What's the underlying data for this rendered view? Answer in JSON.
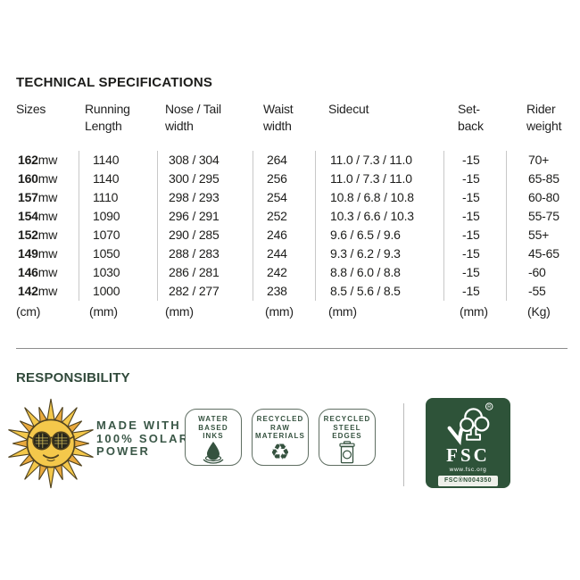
{
  "title": "TECHNICAL SPECIFICATIONS",
  "table": {
    "headers": [
      [
        "Sizes"
      ],
      [
        "Running",
        "Length"
      ],
      [
        "Nose / Tail",
        "width"
      ],
      [
        "Waist",
        "width"
      ],
      [
        "Sidecut"
      ],
      [
        "Set-",
        "back"
      ],
      [
        "Rider",
        "weight"
      ]
    ],
    "rows": [
      {
        "size": "162",
        "size_suffix": "mw",
        "running": "1140",
        "nose_tail": "308 / 304",
        "waist": "264",
        "sidecut": "11.0 / 7.3 / 11.0",
        "setback": "-15",
        "rider": "70+"
      },
      {
        "size": "160",
        "size_suffix": "mw",
        "running": "1140",
        "nose_tail": "300 / 295",
        "waist": "256",
        "sidecut": "11.0 / 7.3 / 11.0",
        "setback": "-15",
        "rider": "65-85"
      },
      {
        "size": "157",
        "size_suffix": "mw",
        "running": "1110",
        "nose_tail": "298 / 293",
        "waist": "254",
        "sidecut": "10.8 / 6.8 / 10.8",
        "setback": "-15",
        "rider": "60-80"
      },
      {
        "size": "154",
        "size_suffix": "mw",
        "running": "1090",
        "nose_tail": "296 / 291",
        "waist": "252",
        "sidecut": "10.3 / 6.6 / 10.3",
        "setback": "-15",
        "rider": "55-75"
      },
      {
        "size": "152",
        "size_suffix": "mw",
        "running": "1070",
        "nose_tail": "290 / 285",
        "waist": "246",
        "sidecut": "9.6 / 6.5 / 9.6",
        "setback": "-15",
        "rider": "55+"
      },
      {
        "size": "149",
        "size_suffix": "mw",
        "running": "1050",
        "nose_tail": "288 / 283",
        "waist": "244",
        "sidecut": "9.3 / 6.2 / 9.3",
        "setback": "-15",
        "rider": "45-65"
      },
      {
        "size": "146",
        "size_suffix": "mw",
        "running": "1030",
        "nose_tail": "286 / 281",
        "waist": "242",
        "sidecut": "8.8 / 6.0 / 8.8",
        "setback": "-15",
        "rider": "-60"
      },
      {
        "size": "142",
        "size_suffix": "mw",
        "running": "1000",
        "nose_tail": "282 / 277",
        "waist": "238",
        "sidecut": "8.5 / 5.6 / 8.5",
        "setback": "-15",
        "rider": "-55"
      }
    ],
    "units": [
      "(cm)",
      "(mm)",
      "(mm)",
      "(mm)",
      "(mm)",
      "(mm)",
      "(Kg)"
    ]
  },
  "responsibility": {
    "heading": "RESPONSIBILITY",
    "solar": {
      "lines": [
        "MADE WITH",
        "100% SOLAR",
        "POWER"
      ]
    },
    "badges": [
      {
        "icon": "water-drop-icon",
        "lines": [
          "WATER",
          "BASED",
          "INKS"
        ]
      },
      {
        "icon": "recycle-icon",
        "lines": [
          "RECYCLED",
          "RAW",
          "MATERIALS"
        ]
      },
      {
        "icon": "trash-can-icon",
        "lines": [
          "RECYCLED",
          "STEEL",
          "EDGES"
        ]
      }
    ],
    "fsc": {
      "brand": "FSC",
      "registered": "®",
      "url": "www.fsc.org",
      "license": "FSC®N004350"
    }
  },
  "colors": {
    "text": "#1d1d1b",
    "green": "#35523f",
    "fsc_green": "#2e5339",
    "separator": "#c8c8c8",
    "rule": "#8c8c8c",
    "sun_yellow": "#f4c84b",
    "sun_orange": "#e9a93d"
  }
}
